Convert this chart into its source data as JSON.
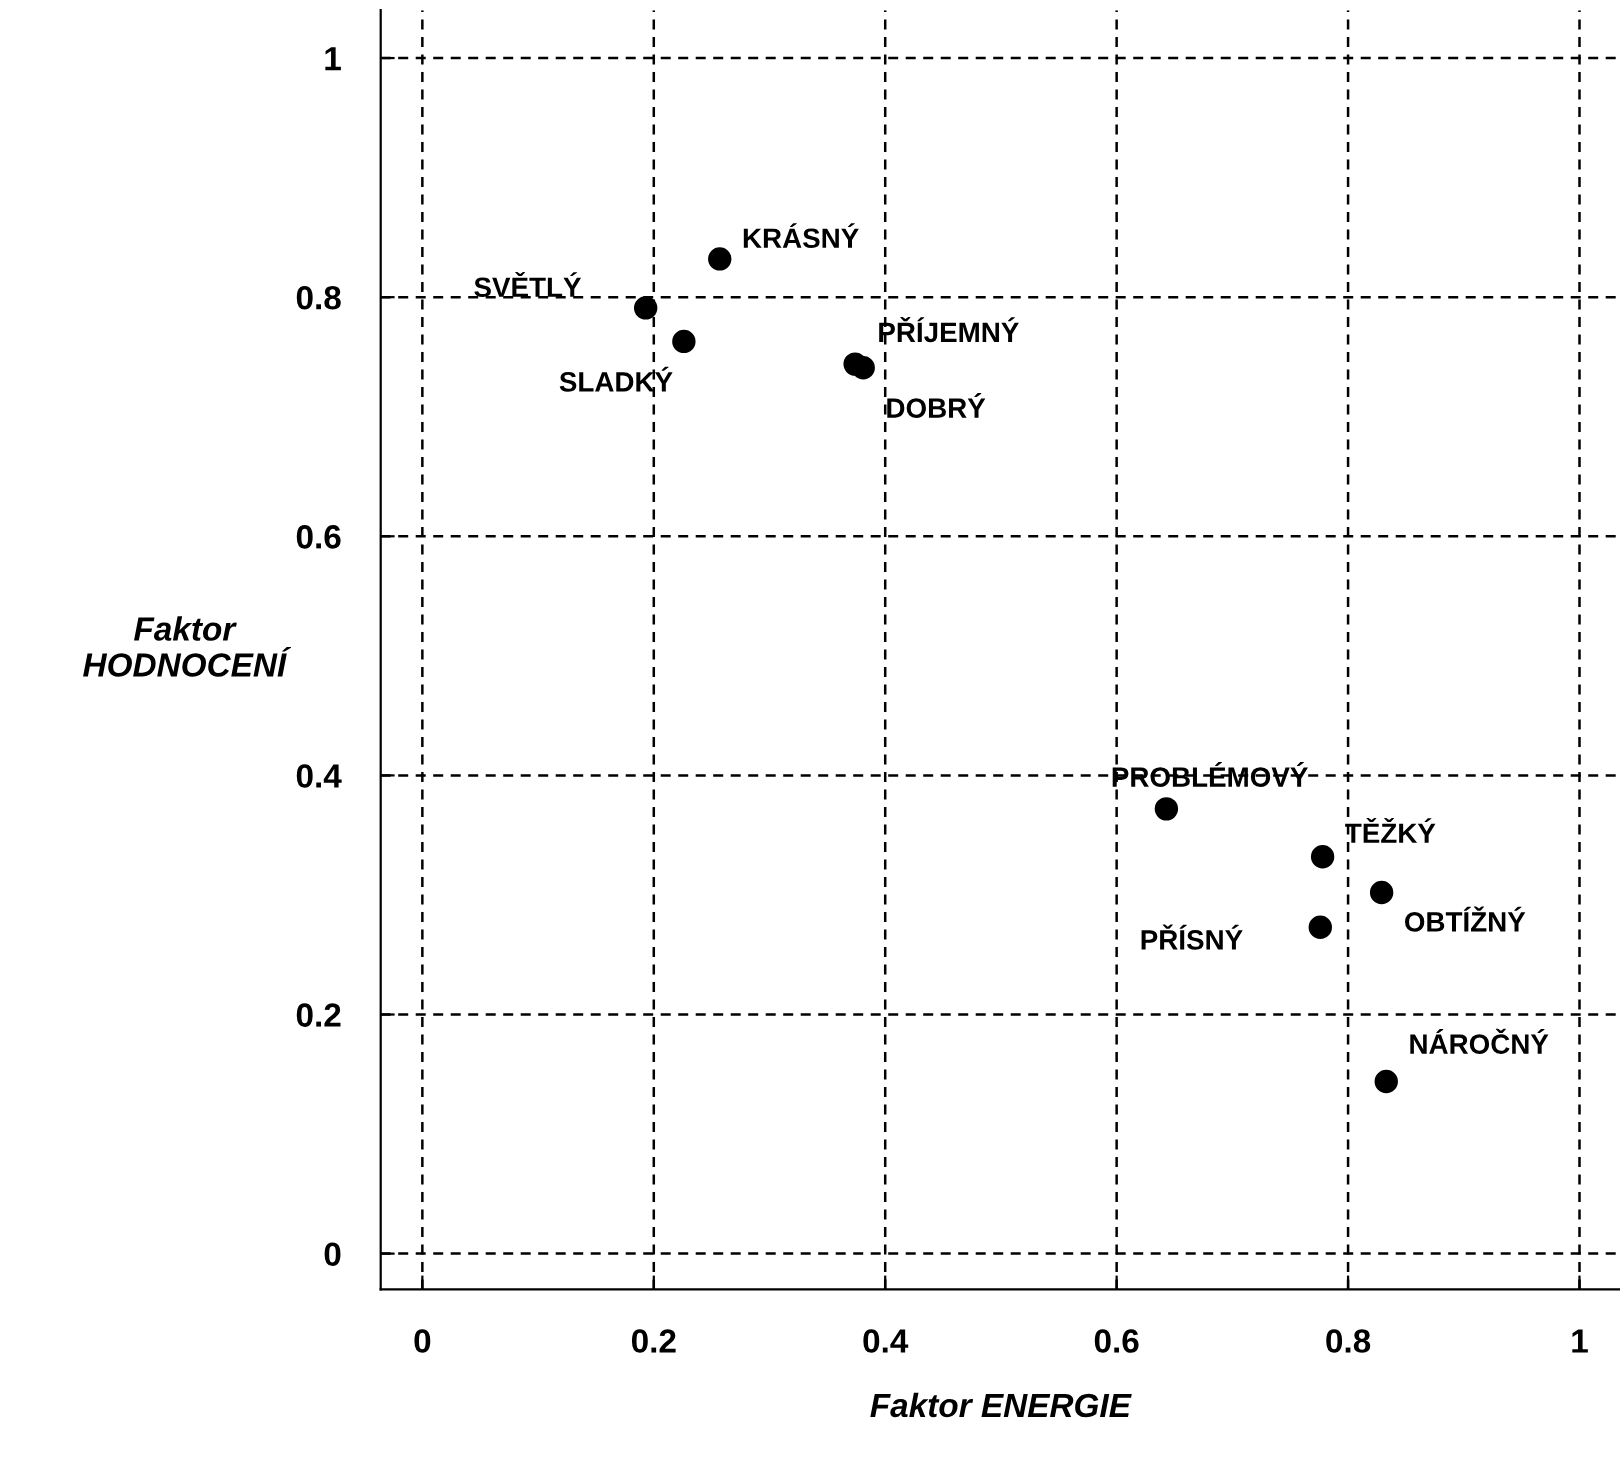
{
  "chart_data": {
    "type": "scatter",
    "xlabel": "Faktor ENERGIE",
    "ylabel": "Faktor\nHODNOCENÍ",
    "x": [
      0.193,
      0.257,
      0.226,
      0.374,
      0.381,
      0.643,
      0.778,
      0.829,
      0.776,
      0.833
    ],
    "series": [
      {
        "color": "#000000",
        "values": [
          0.791,
          0.832,
          0.763,
          0.744,
          0.741,
          0.372,
          0.332,
          0.302,
          0.273,
          0.144
        ]
      }
    ],
    "annotations": [
      {
        "text": "SVĚTLÝ",
        "x": 0.193,
        "y": 0.791
      },
      {
        "text": "KRÁSNÝ",
        "x": 0.257,
        "y": 0.832
      },
      {
        "text": "SLADKÝ",
        "x": 0.226,
        "y": 0.763
      },
      {
        "text": "PŘÍJEMNÝ",
        "x": 0.374,
        "y": 0.744
      },
      {
        "text": "DOBRÝ",
        "x": 0.381,
        "y": 0.741
      },
      {
        "text": "PROBLÉMOVÝ",
        "x": 0.643,
        "y": 0.372
      },
      {
        "text": "TĚŽKÝ",
        "x": 0.778,
        "y": 0.332
      },
      {
        "text": "OBTÍŽNÝ",
        "x": 0.829,
        "y": 0.302
      },
      {
        "text": "PŘÍSNÝ",
        "x": 0.776,
        "y": 0.273
      },
      {
        "text": "NÁROČNÝ",
        "x": 0.833,
        "y": 0.144
      }
    ],
    "xlim": [
      -0.036,
      1.035
    ],
    "ylim": [
      -0.03,
      1.04
    ],
    "xticks": [
      0,
      0.2,
      0.4,
      0.6,
      0.8,
      1
    ],
    "yticks": [
      0,
      0.2,
      0.4,
      0.6,
      0.8,
      1
    ],
    "grid": true,
    "marker": "circle"
  }
}
